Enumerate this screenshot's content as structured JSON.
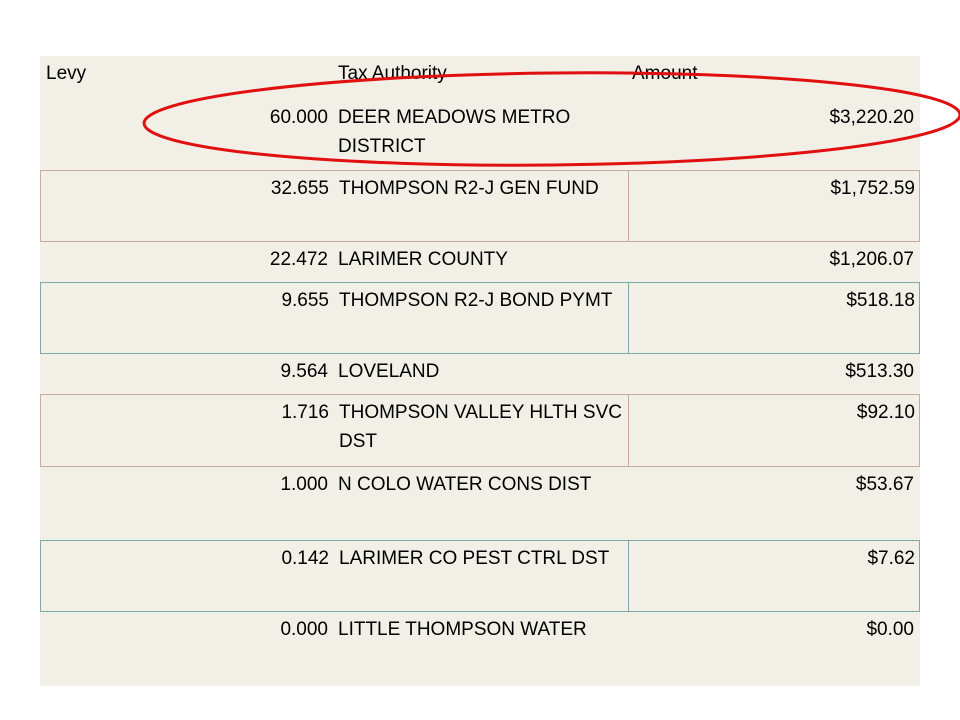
{
  "table": {
    "header": [
      "Levy",
      "Tax Authority",
      "Amount"
    ],
    "rows": [
      [
        "60.000",
        "DEER MEADOWS METRO DISTRICT",
        "$3,220.20"
      ],
      [
        "32.655",
        "THOMPSON R2-J GEN FUND",
        "$1,752.59"
      ],
      [
        "22.472",
        "LARIMER COUNTY",
        "$1,206.07"
      ],
      [
        "9.655",
        "THOMPSON R2-J BOND PYMT",
        "$518.18"
      ],
      [
        "9.564",
        "LOVELAND",
        "$513.30"
      ],
      [
        "1.716",
        "THOMPSON VALLEY HLTH SVC DST",
        "$92.10"
      ],
      [
        "1.000",
        "N COLO WATER CONS DIST",
        "$53.67"
      ],
      [
        "0.142",
        "LARIMER CO PEST CTRL DST",
        "$7.62"
      ],
      [
        "0.000",
        "LITTLE THOMPSON WATER",
        "$0.00"
      ]
    ]
  }
}
